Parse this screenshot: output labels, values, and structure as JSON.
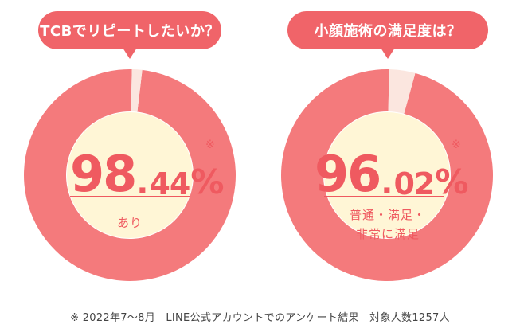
{
  "chart_data": [
    {
      "type": "pie",
      "title": "TCBでリピートしたいか？",
      "value_text": {
        "int": "98",
        "dot": ".",
        "dec": "44",
        "sign": "%"
      },
      "mark": "※",
      "values": [
        98.44,
        1.56
      ],
      "labels": [
        "あり",
        ""
      ],
      "label_lines": [
        "あり"
      ],
      "colors": [
        "#f47a7c",
        "#fbe6df"
      ]
    },
    {
      "type": "pie",
      "title": "小顔施術の満足度は？",
      "value_text": {
        "int": "96",
        "dot": ".",
        "dec": "02",
        "sign": "%"
      },
      "mark": "※",
      "values": [
        96.02,
        3.98
      ],
      "labels": [
        "普通・満足・非常に満足",
        ""
      ],
      "label_lines": [
        "普通・満足・",
        "非常に満足"
      ],
      "colors": [
        "#f47a7c",
        "#fbe6df"
      ]
    }
  ],
  "footnote": "※ 2022年7〜8月　LINE公式アカウントでのアンケート結果　対象人数1257人",
  "colors": {
    "accent": "#f06469",
    "ring": "#f47a7c",
    "ring_remainder": "#fbe6df",
    "center": "#fff6d6",
    "text_accent": "#ef5a60"
  }
}
